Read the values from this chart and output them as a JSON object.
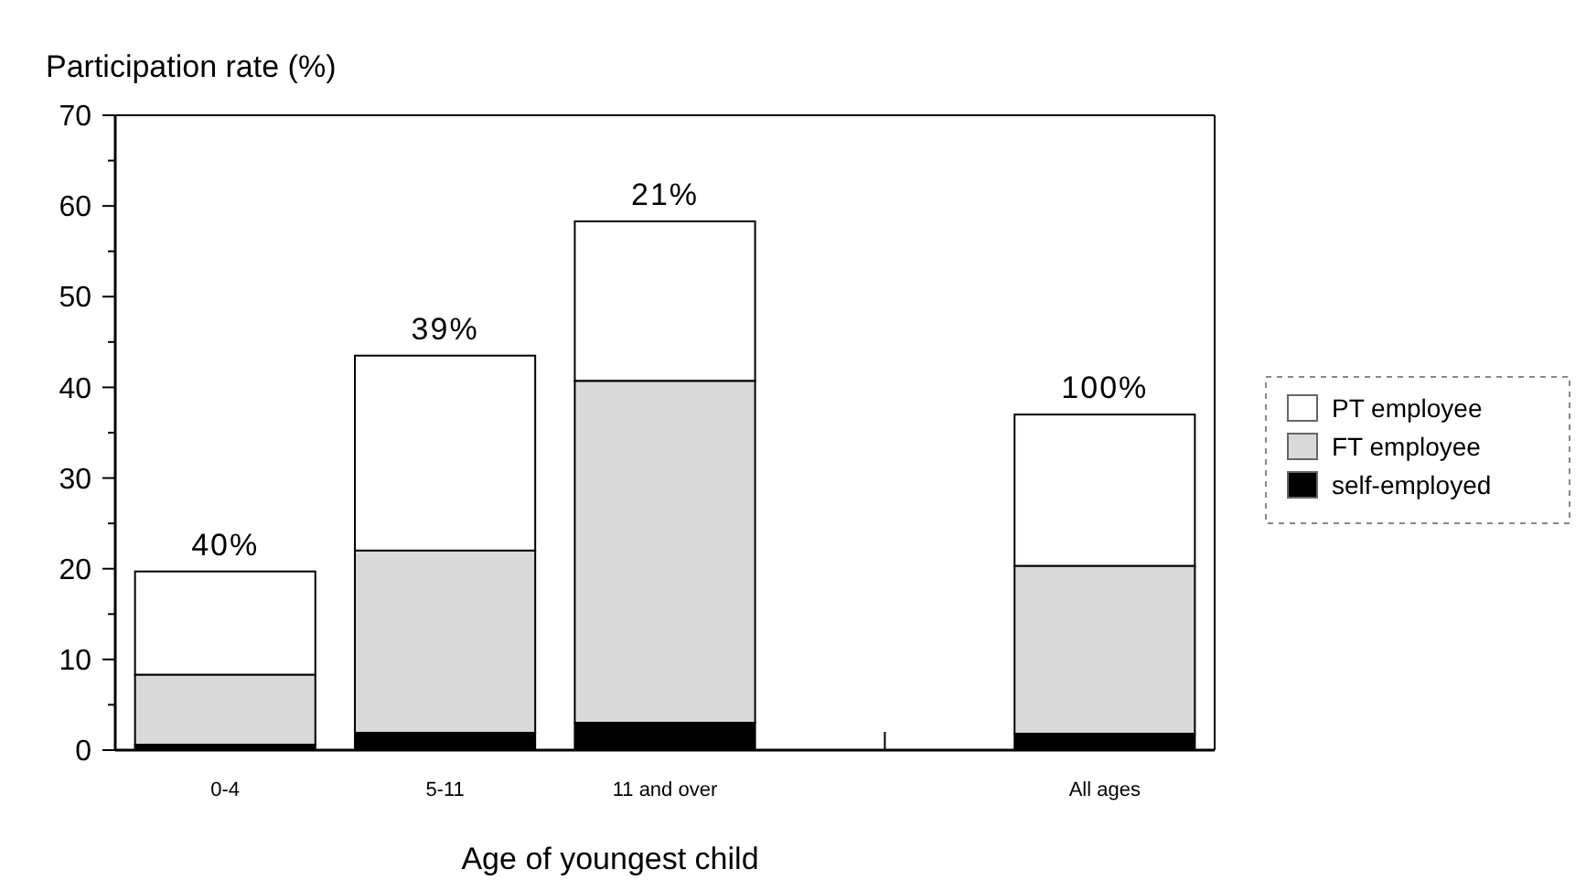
{
  "chart_data": {
    "type": "bar",
    "stacked": true,
    "ylabel": "Participation rate (%)",
    "xlabel": "Age of youngest child",
    "categories": [
      "0-4",
      "5-11",
      "11 and over",
      null,
      "All ages"
    ],
    "series": [
      {
        "name": "self-employed",
        "color": "#000000",
        "values": [
          0.6,
          1.9,
          3,
          null,
          1.8
        ]
      },
      {
        "name": "FT employee",
        "color": "#d9d9d9",
        "values": [
          7.7,
          20.1,
          37.7,
          null,
          18.5
        ]
      },
      {
        "name": "PT employee",
        "color": "#ffffff",
        "values": [
          11.4,
          21.5,
          17.6,
          null,
          16.7
        ]
      }
    ],
    "ylim": [
      0,
      70
    ],
    "yticks": [
      0,
      {
        "value": 5,
        "label": null
      },
      10,
      {
        "value": 15,
        "label": null
      },
      20,
      {
        "value": 25,
        "label": null
      },
      30,
      {
        "value": 35,
        "label": null
      },
      40,
      {
        "value": 45,
        "label": null
      },
      50,
      {
        "value": 55,
        "label": null
      },
      60,
      {
        "value": 65,
        "label": null
      },
      70
    ],
    "annotations": [
      {
        "text": "40%",
        "x": "0-4",
        "y": 19.7
      },
      {
        "text": "39%",
        "x": "5-11",
        "y": 43.5
      },
      {
        "text": "21%",
        "x": "11 and over",
        "y": 58.3
      },
      {
        "text": "100%",
        "x": "All ages",
        "y": 37
      }
    ],
    "legend": "right",
    "grid": false
  }
}
